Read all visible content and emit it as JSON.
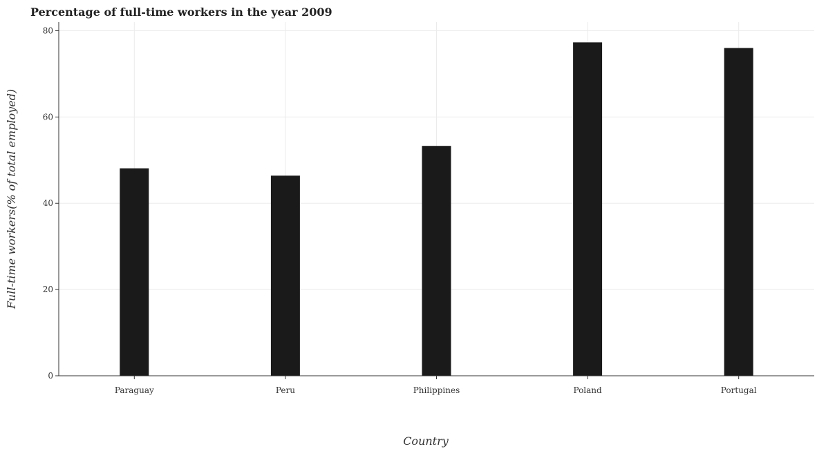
{
  "chart_data": {
    "type": "bar",
    "title": "Percentage of full-time workers in the year 2009",
    "xlabel": "Country",
    "ylabel": "Full-time workers(% of total employed)",
    "categories": [
      "Paraguay",
      "Peru",
      "Philippines",
      "Poland",
      "Portugal"
    ],
    "values": [
      48.1,
      46.4,
      53.3,
      77.3,
      76.0
    ],
    "ylim": [
      0,
      82
    ],
    "yticks": [
      "0",
      "20",
      "40",
      "60",
      "80"
    ],
    "grid": true,
    "legend": "none",
    "bar_color": "#1a1a1a"
  }
}
